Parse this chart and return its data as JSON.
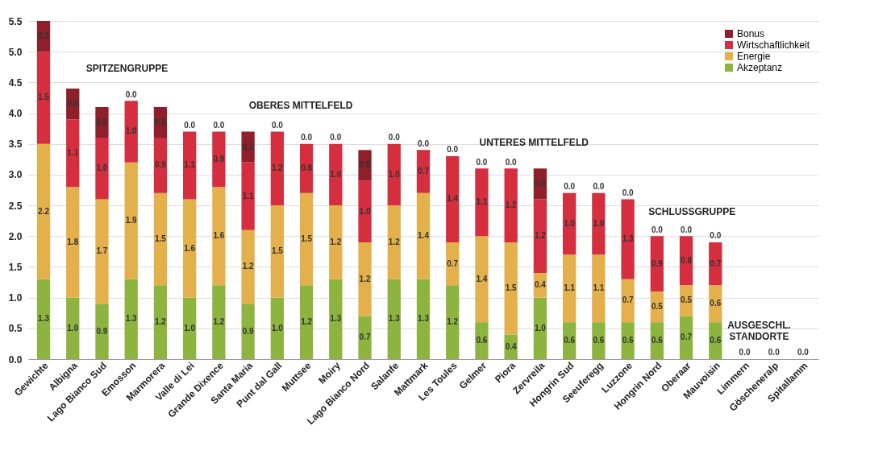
{
  "chart_data": {
    "type": "bar",
    "stacked": true,
    "categories": [
      "Gewichte",
      "Albigna",
      "Lago Bianco Sud",
      "Emosson",
      "Marmorera",
      "Valle di Lei",
      "Grande Dixence",
      "Santa Maria",
      "Punt dal Gall",
      "Muttsee",
      "Moiry",
      "Lago Bianco Nord",
      "Salanfe",
      "Mattmark",
      "Les Toules",
      "Gelmer",
      "Piora",
      "Zervreila",
      "Hongrin Sud",
      "Seeuferegg",
      "Luzzone",
      "Hongrin Nord",
      "Oberaar",
      "Mauvoisin",
      "Limmern",
      "Göscheneralp",
      "Spitallamm"
    ],
    "series": [
      {
        "name": "Akzeptanz",
        "color": "#8db43e",
        "values": [
          1.3,
          1.0,
          0.9,
          1.3,
          1.2,
          1.0,
          1.2,
          0.9,
          1.0,
          1.2,
          1.3,
          0.7,
          1.3,
          1.3,
          1.2,
          0.6,
          0.4,
          1.0,
          0.6,
          0.6,
          0.6,
          0.6,
          0.7,
          0.6,
          null,
          null,
          null
        ],
        "value_labels": [
          "1.3",
          "1.0",
          "0.9",
          "1.3",
          "1.2",
          "1.0",
          "1.2",
          "0.9",
          "1.0",
          "1.2",
          "1.3",
          "0.7",
          "1.3",
          "1.3",
          "1.2",
          "0.6",
          "0.4",
          "1.0",
          "0.6",
          "0.6",
          "0.6",
          "0.6",
          "0.7",
          "0.6",
          null,
          null,
          null
        ]
      },
      {
        "name": "Energie",
        "color": "#e3b04b",
        "values": [
          2.2,
          1.8,
          1.7,
          1.9,
          1.5,
          1.6,
          1.6,
          1.2,
          1.5,
          1.5,
          1.2,
          1.2,
          1.2,
          1.4,
          0.7,
          1.4,
          1.5,
          0.4,
          1.1,
          1.1,
          0.7,
          0.5,
          0.5,
          0.6,
          null,
          null,
          null
        ],
        "value_labels": [
          "2.2",
          "1.8",
          "1.7",
          "1.9",
          "1.5",
          "1.6",
          "1.6",
          "1.2",
          "1.5",
          "1.5",
          "1.2",
          "1.2",
          "1.2",
          "1.4",
          "0.7",
          "1.4",
          "1.5",
          "0.4",
          "1.1",
          "1.1",
          "0.7",
          "0.5",
          "0.5",
          "0.6",
          null,
          null,
          null
        ]
      },
      {
        "name": "Wirtschaftlichkeit",
        "color": "#d42e3f",
        "values": [
          1.5,
          1.1,
          1.0,
          1.0,
          0.9,
          1.1,
          0.9,
          1.1,
          1.2,
          0.8,
          1.0,
          1.0,
          1.0,
          0.7,
          1.4,
          1.1,
          1.2,
          1.2,
          1.0,
          1.0,
          1.3,
          0.9,
          0.8,
          0.7,
          null,
          null,
          null
        ],
        "value_labels": [
          "1.5",
          "1.1",
          "1.0",
          "1.0",
          "0.9",
          "1.1",
          "0.9",
          "1.1",
          "1.2",
          "0.8",
          "1.0",
          "1.0",
          "1.0",
          "0.7",
          "1.4",
          "1.1",
          "1.2",
          "1.2",
          "1.0",
          "1.0",
          "1.3",
          "0.9",
          "0.8",
          "0.7",
          null,
          null,
          null
        ]
      },
      {
        "name": "Bonus",
        "color": "#8e1f2b",
        "values": [
          0.5,
          0.5,
          0.5,
          0,
          0.5,
          0,
          0,
          0.5,
          0,
          0,
          0,
          0.5,
          0,
          0,
          0,
          0,
          0,
          0.5,
          0,
          0,
          0,
          0,
          0,
          0,
          0,
          0,
          0
        ],
        "value_labels": [
          "0.5",
          "0.5",
          "0.5",
          "0.0",
          "0.5",
          "0.0",
          "0.0",
          "0.5",
          "0.0",
          "0.0",
          "0.0",
          "0.5",
          "0.0",
          "0.0",
          "0.0",
          "0.0",
          "0.0",
          "0.5",
          "0.0",
          "0.0",
          "0.0",
          "0.0",
          "0.0",
          "0.0",
          "0.0",
          "0.0",
          "0.0"
        ]
      }
    ],
    "ylim": [
      0,
      5.5
    ],
    "yticks": [
      {
        "value": 0,
        "label": "0.0"
      },
      0.5,
      {
        "value": 1,
        "label": "1.0"
      },
      1.5,
      {
        "value": 2,
        "label": "2.0"
      },
      2.5,
      {
        "value": 3,
        "label": "3.0"
      },
      3.5,
      {
        "value": 4,
        "label": "4.0"
      },
      4.5,
      {
        "value": 5,
        "label": "5.0"
      },
      5.5
    ],
    "grid": "y",
    "legend": "top right",
    "annotations": [
      "SPITZENGRUPPE",
      "OBERES MITTELFELD",
      "UNTERES MITTELFELD",
      "SCHLUSSGRUPPE",
      "AUSGESCHL. STANDORTE"
    ]
  }
}
